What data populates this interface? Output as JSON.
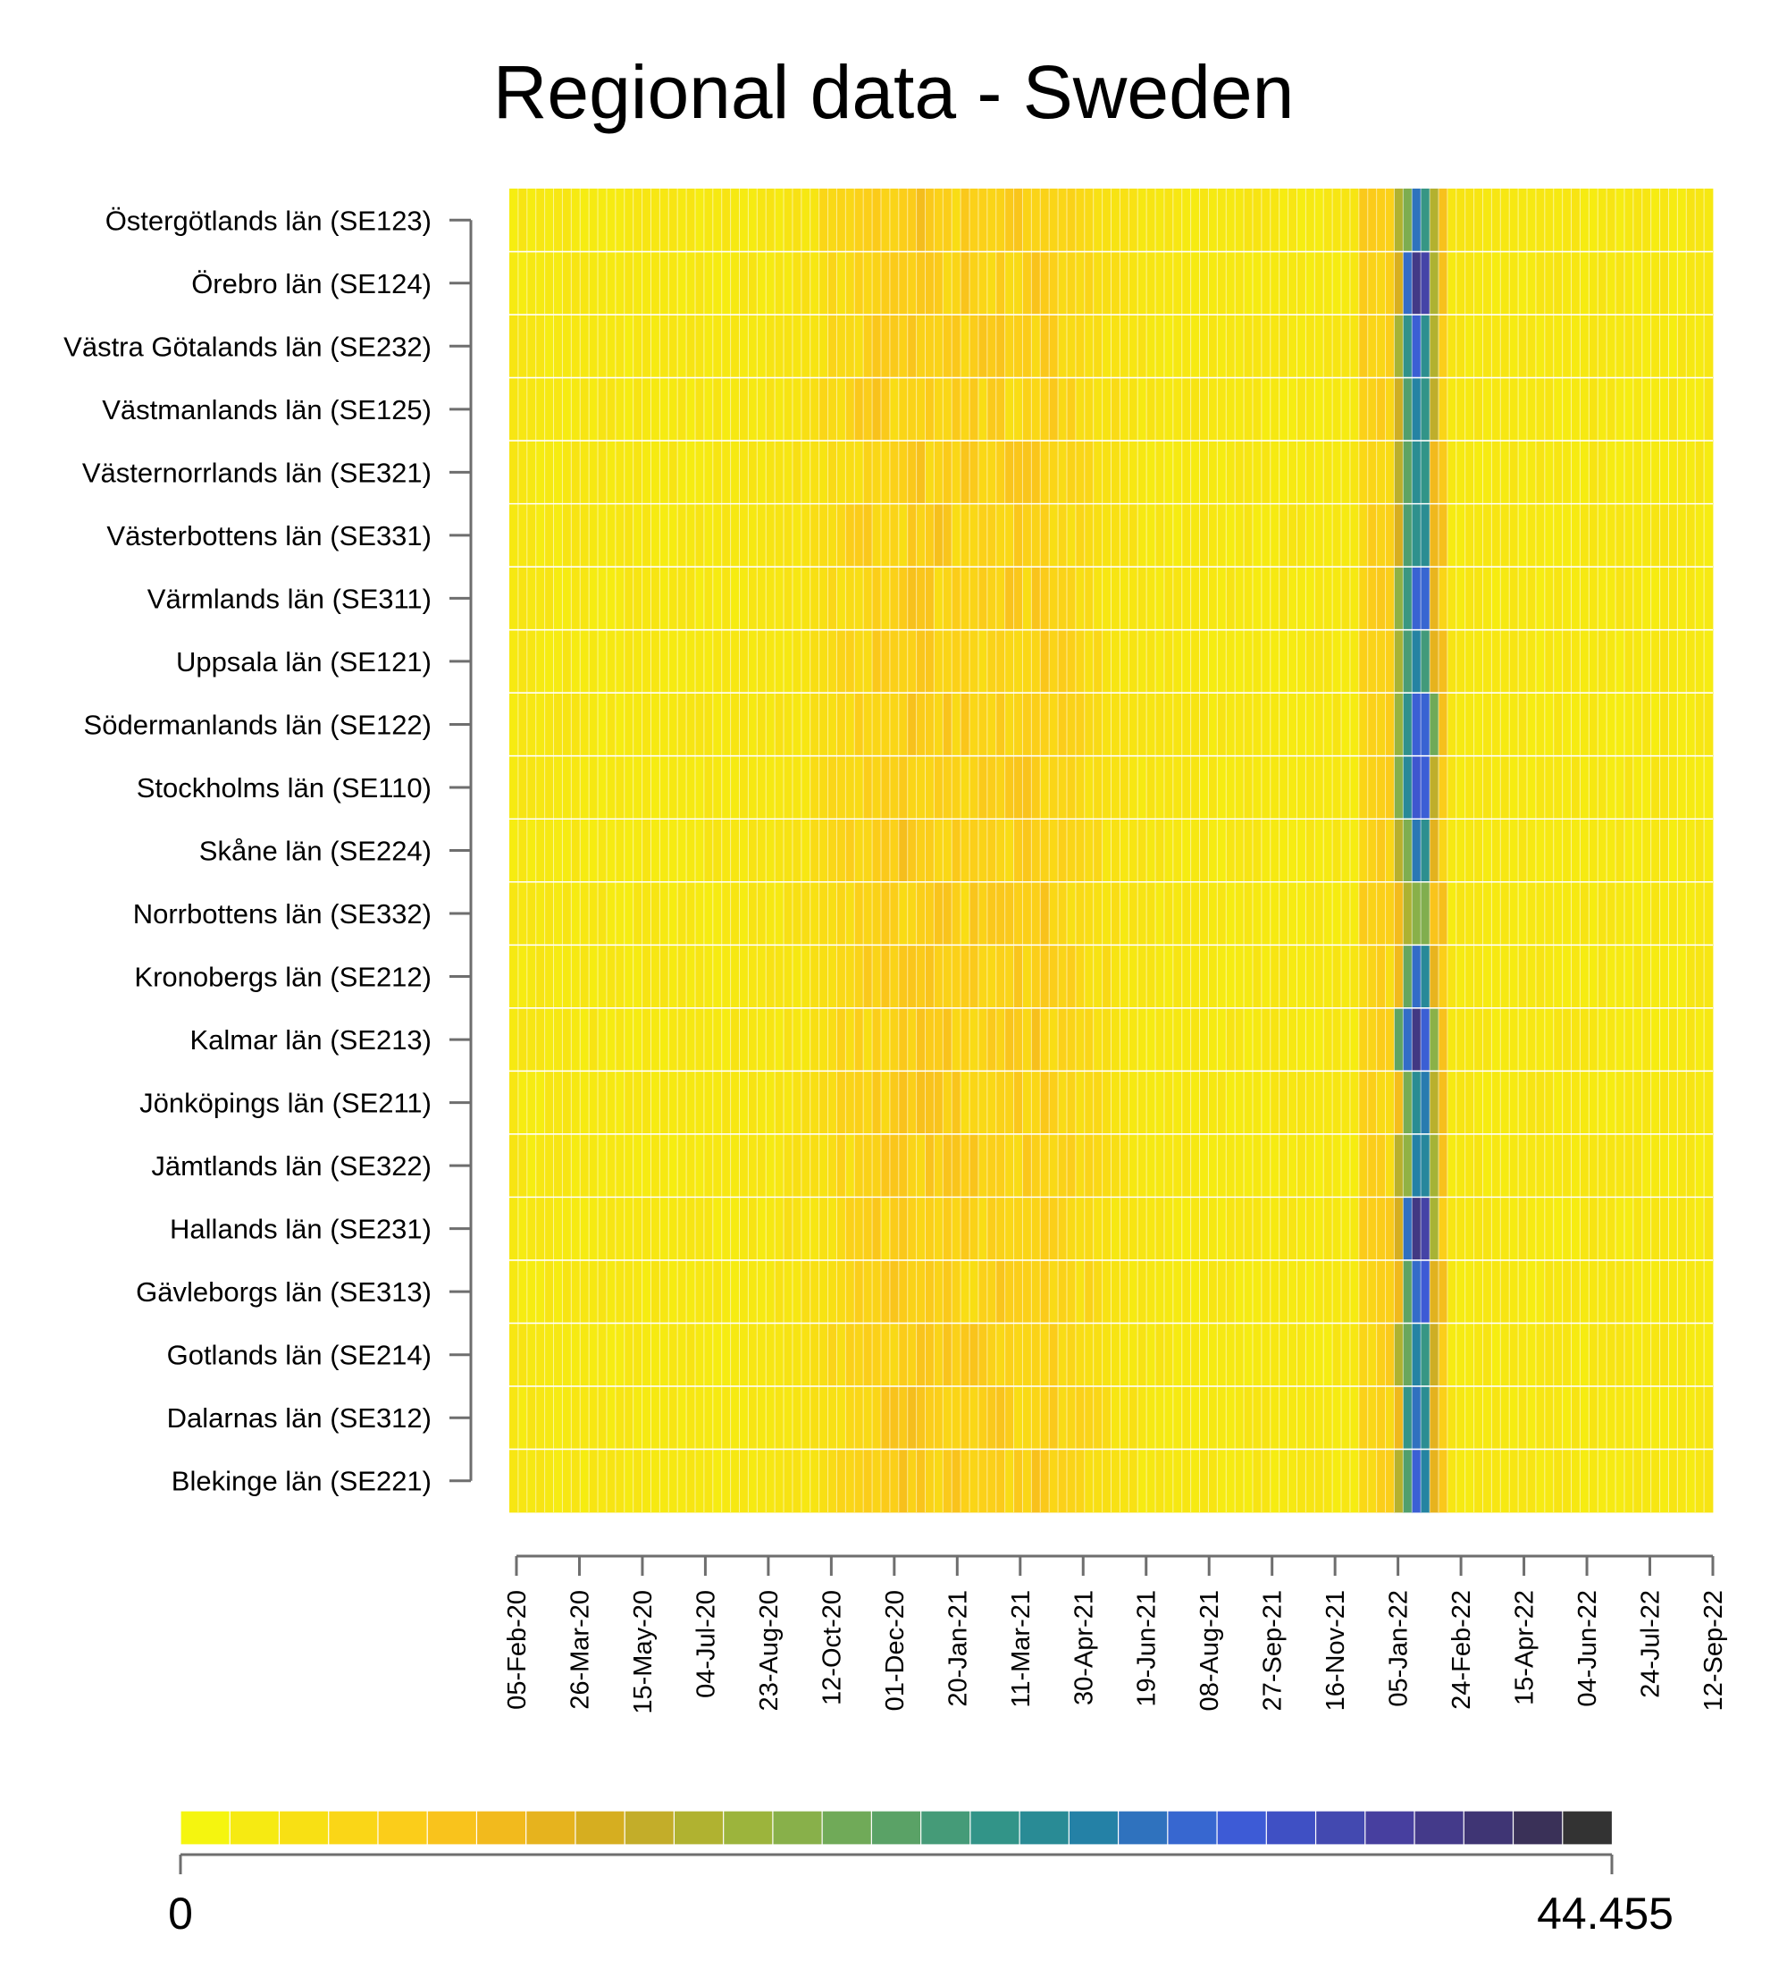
{
  "chart_data": {
    "type": "heatmap",
    "title": "Regional data - Sweden",
    "rows": [
      "Östergötlands län (SE123)",
      "Örebro län (SE124)",
      "Västra Götalands län (SE232)",
      "Västmanlands län (SE125)",
      "Västernorrlands län (SE321)",
      "Västerbottens län (SE331)",
      "Värmlands län (SE311)",
      "Uppsala län (SE121)",
      "Södermanlands län (SE122)",
      "Stockholms län (SE110)",
      "Skåne län (SE224)",
      "Norrbottens län (SE332)",
      "Kronobergs län (SE212)",
      "Kalmar län (SE213)",
      "Jönköpings län (SE211)",
      "Jämtlands län (SE322)",
      "Hallands län (SE231)",
      "Gävleborgs län (SE313)",
      "Gotlands län (SE214)",
      "Dalarnas län (SE312)",
      "Blekinge län (SE221)"
    ],
    "x_ticks": [
      "05-Feb-20",
      "26-Mar-20",
      "15-May-20",
      "04-Jul-20",
      "23-Aug-20",
      "12-Oct-20",
      "01-Dec-20",
      "20-Jan-21",
      "11-Mar-21",
      "30-Apr-21",
      "19-Jun-21",
      "08-Aug-21",
      "27-Sep-21",
      "16-Nov-21",
      "05-Jan-22",
      "24-Feb-22",
      "15-Apr-22",
      "04-Jun-22",
      "24-Jul-22",
      "12-Sep-22"
    ],
    "x_unit": "weekly columns starting 05-Feb-20",
    "n_columns": 136,
    "colorbar": {
      "min": 0,
      "max": 44.455,
      "min_label": "0",
      "max_label": "44.455",
      "colors": [
        "#f5f50f",
        "#f6ea12",
        "#f8e014",
        "#fad617",
        "#fbcd1a",
        "#f9c31c",
        "#f2ba1d",
        "#e6b31e",
        "#d6ae20",
        "#c3ad29",
        "#b0b230",
        "#9cb43c",
        "#88b04a",
        "#70aa58",
        "#5aa266",
        "#459b78",
        "#329488",
        "#298b95",
        "#2481a6",
        "#2f72be",
        "#3767d0",
        "#3d5bd6",
        "#3f50c4",
        "#4349b0",
        "#473f9f",
        "#443a8a",
        "#3f3574",
        "#3a3158",
        "#333333"
      ]
    },
    "peak_values_by_row": [
      32.0,
      44.455,
      34.0,
      30.5,
      31.0,
      30.0,
      34.0,
      31.5,
      36.0,
      36.0,
      32.0,
      21.0,
      31.0,
      41.0,
      31.5,
      30.5,
      42.0,
      36.0,
      30.0,
      32.0,
      33.0
    ],
    "notes": "Values near 0-6 throughout (yellow), with a moderate bump Dec-20 to Apr-21 and a sharp peak around Jan-22."
  }
}
